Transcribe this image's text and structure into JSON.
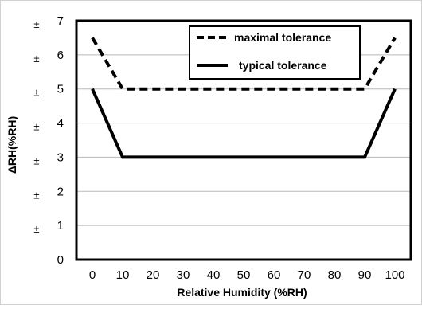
{
  "chart_data": {
    "type": "line",
    "title": "",
    "xlabel": "Relative Humidity (%RH)",
    "ylabel": "ΔRH(%RH)",
    "x_ticks": [
      "0",
      "10",
      "20",
      "30",
      "40",
      "50",
      "60",
      "70",
      "80",
      "90",
      "100"
    ],
    "y_ticks": [
      "0",
      "1",
      "2",
      "3",
      "4",
      "5",
      "6",
      "7"
    ],
    "y_tick_prefix": "±",
    "xlim": [
      0,
      100
    ],
    "ylim": [
      0,
      7
    ],
    "grid": "horizontal",
    "legend_position": "top-right",
    "series": [
      {
        "name": "maximal tolerance",
        "style": "dashed",
        "color": "#000000",
        "x": [
          0,
          10,
          90,
          100
        ],
        "y": [
          6.5,
          5,
          5,
          6.5
        ]
      },
      {
        "name": "typical tolerance",
        "style": "solid",
        "color": "#000000",
        "x": [
          0,
          10,
          90,
          100
        ],
        "y": [
          5,
          3,
          3,
          5
        ]
      }
    ]
  }
}
